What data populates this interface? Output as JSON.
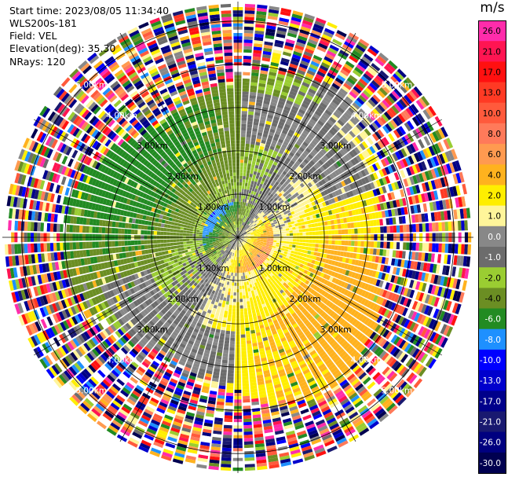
{
  "info": {
    "start_time": "Start time: 2023/08/05 11:34:40",
    "instrument": "WLS200s-181",
    "field": "Field: VEL",
    "elevation": "Elevation(deg): 35.30",
    "nrays": "NRays: 120"
  },
  "chart_data": {
    "type": "heatmap",
    "subtype": "ppi-polar",
    "field": "VEL",
    "units": "m/s",
    "n_rays": 120,
    "range_rings_km": [
      1.0,
      2.0,
      3.0,
      4.0,
      5.0
    ],
    "range_labels": [
      "1.00km",
      "2.00km",
      "3.00km",
      "4.00km",
      "5.00km"
    ],
    "max_range_km": 5.45,
    "colorbar": {
      "unit_label": "m/s",
      "ticks": [
        "26.0",
        "21.0",
        "17.0",
        "13.0",
        "10.0",
        "8.0",
        "6.0",
        "4.0",
        "2.0",
        "1.0",
        "0.0",
        "-1.0",
        "-2.0",
        "-4.0",
        "-6.0",
        "-8.0",
        "-10.0",
        "-13.0",
        "-17.0",
        "-21.0",
        "-26.0",
        "-30.0"
      ],
      "colors": [
        "#ff2cab",
        "#ff1552",
        "#ff1010",
        "#ff3a24",
        "#ff5a3c",
        "#ff7a5a",
        "#ff9a50",
        "#ffb21e",
        "#ffee00",
        "#fff59a",
        "#888888",
        "#6c6c6c",
        "#9acd32",
        "#6b8e23",
        "#228b22",
        "#1e90ff",
        "#0000ff",
        "#0000cd",
        "#00008b",
        "#191970",
        "#000080",
        "#000050"
      ]
    }
  }
}
